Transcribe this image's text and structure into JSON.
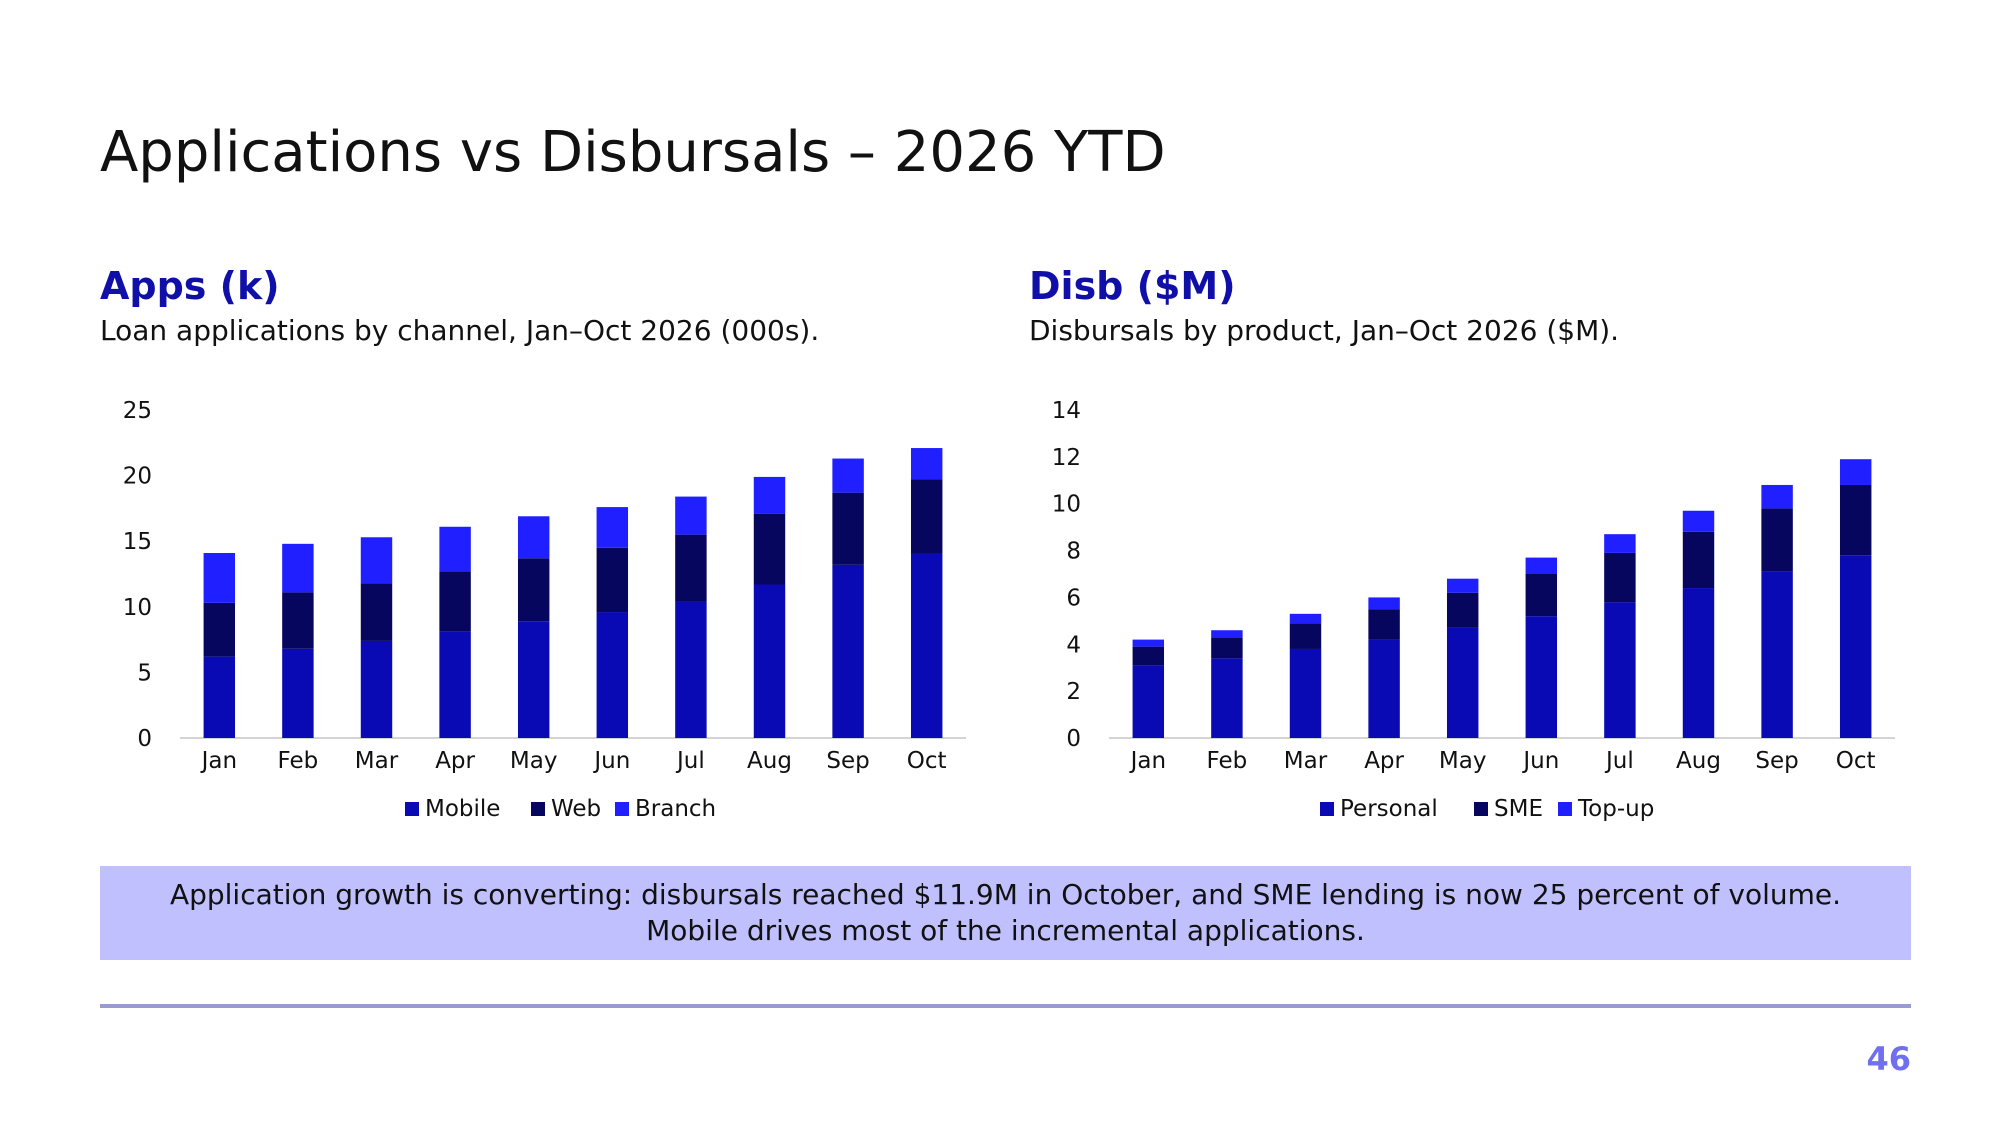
{
  "slide": {
    "title": "Applications vs Disbursals – 2026 YTD",
    "callout": "Application growth is converting: disbursals reached $11.9M in October, and SME lending is now 25 percent of volume. Mobile drives most of the incremental applications.",
    "page_number": "46"
  },
  "panels": [
    {
      "heading": "Apps (k)",
      "subtitle": "Loan applications by channel, Jan–Oct 2026 (000s)."
    },
    {
      "heading": "Disb ($M)",
      "subtitle": "Disbursals by product, Jan–Oct 2026 ($M)."
    }
  ],
  "chart_data": [
    {
      "type": "bar",
      "stacked": true,
      "title": "",
      "xlabel": "",
      "ylabel": "",
      "categories": [
        "Jan",
        "Feb",
        "Mar",
        "Apr",
        "May",
        "Jun",
        "Jul",
        "Aug",
        "Sep",
        "Oct"
      ],
      "ylim": [
        0,
        25
      ],
      "yticks": [
        "0",
        "5",
        "10",
        "15",
        "20",
        "25"
      ],
      "grid": false,
      "legend_position": "bottom",
      "series": [
        {
          "name": "Mobile",
          "color": "#0a0ab4",
          "values": [
            6.2,
            6.8,
            7.4,
            8.1,
            8.9,
            9.6,
            10.4,
            11.7,
            13.2,
            14.1
          ]
        },
        {
          "name": "Web",
          "color": "#06065e",
          "values": [
            4.1,
            4.3,
            4.4,
            4.6,
            4.8,
            4.9,
            5.1,
            5.4,
            5.5,
            5.6
          ]
        },
        {
          "name": "Branch",
          "color": "#1f1fff",
          "values": [
            3.8,
            3.7,
            3.5,
            3.4,
            3.2,
            3.1,
            2.9,
            2.8,
            2.6,
            2.4
          ]
        }
      ]
    },
    {
      "type": "bar",
      "stacked": true,
      "title": "",
      "xlabel": "",
      "ylabel": "",
      "categories": [
        "Jan",
        "Feb",
        "Mar",
        "Apr",
        "May",
        "Jun",
        "Jul",
        "Aug",
        "Sep",
        "Oct"
      ],
      "ylim": [
        0,
        14
      ],
      "yticks": [
        "0",
        "2",
        "4",
        "6",
        "8",
        "10",
        "12",
        "14"
      ],
      "grid": false,
      "legend_position": "bottom",
      "series": [
        {
          "name": "Personal",
          "color": "#0a0ab4",
          "values": [
            3.1,
            3.4,
            3.8,
            4.2,
            4.7,
            5.2,
            5.8,
            6.4,
            7.1,
            7.8
          ]
        },
        {
          "name": "SME",
          "color": "#06065e",
          "values": [
            0.8,
            0.9,
            1.1,
            1.3,
            1.5,
            1.8,
            2.1,
            2.4,
            2.7,
            3.0
          ]
        },
        {
          "name": "Top-up",
          "color": "#1f1fff",
          "values": [
            0.3,
            0.3,
            0.4,
            0.5,
            0.6,
            0.7,
            0.8,
            0.9,
            1.0,
            1.1
          ]
        }
      ]
    }
  ]
}
